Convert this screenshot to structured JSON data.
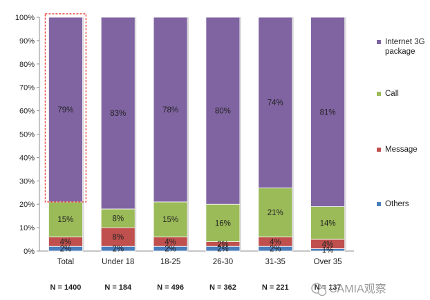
{
  "chart_data": {
    "type": "bar",
    "stacked": true,
    "categories": [
      "Total",
      "Under 18",
      "18-25",
      "26-30",
      "31-35",
      "Over 35"
    ],
    "series": [
      {
        "name": "Others",
        "color": "#4a7ebb",
        "values": [
          2,
          2,
          2,
          2,
          2,
          1
        ]
      },
      {
        "name": "Message",
        "color": "#c0504d",
        "values": [
          4,
          8,
          4,
          2,
          4,
          4
        ]
      },
      {
        "name": "Call",
        "color": "#9bbb59",
        "values": [
          15,
          8,
          15,
          16,
          21,
          14
        ]
      },
      {
        "name": "Internet 3G package",
        "color": "#8064a2",
        "values": [
          79,
          83,
          78,
          80,
          74,
          81
        ]
      }
    ],
    "data_labels": [
      [
        "2%",
        "4%",
        "15%",
        "79%"
      ],
      [
        "2%",
        "8%",
        "8%",
        "83%"
      ],
      [
        "2%",
        "4%",
        "15%",
        "78%"
      ],
      [
        "2%",
        "2%",
        "16%",
        "80%"
      ],
      [
        "2%",
        "4%",
        "21%",
        "74%"
      ],
      [
        "1%",
        "4%",
        "14%",
        "81%"
      ]
    ],
    "y_ticks": [
      "0%",
      "10%",
      "20%",
      "30%",
      "40%",
      "50%",
      "60%",
      "70%",
      "80%",
      "90%",
      "100%"
    ],
    "ylim": [
      0,
      100
    ],
    "sample_sizes": [
      "N = 1400",
      "N = 184",
      "N = 496",
      "N = 362",
      "N = 221",
      "N = 137"
    ],
    "legend_position": "right",
    "highlight": {
      "category": "Total",
      "range": [
        21,
        100
      ],
      "style": "dashed",
      "color": "#e8453c"
    },
    "grid": false
  },
  "watermark": {
    "text": "CAMIA观察",
    "icon": "wechat-icon"
  }
}
